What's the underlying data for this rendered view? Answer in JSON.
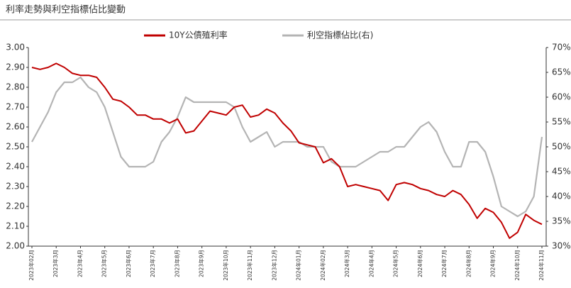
{
  "chart_data": {
    "type": "line",
    "title": "利率走勢與利空指標佔比變動",
    "categories": [
      "2023年02月",
      null,
      null,
      "2023年3月",
      null,
      null,
      "2023年4月",
      null,
      null,
      "2023年5月",
      null,
      null,
      "2023年6月",
      null,
      null,
      "2023年7月",
      null,
      null,
      "2023年8月",
      null,
      null,
      "2023年9月",
      null,
      null,
      "2023年10月",
      null,
      null,
      "2023年11月",
      null,
      null,
      "2023年12月",
      null,
      null,
      "2024年01月",
      null,
      null,
      "2024年02月",
      null,
      null,
      "2024年3月",
      null,
      null,
      "2024年4月",
      null,
      null,
      "2024年5月",
      null,
      null,
      "2024年6月",
      null,
      null,
      "2024年7月",
      null,
      null,
      "2024年8月",
      null,
      null,
      "2024年9月",
      null,
      null,
      "2024年10月",
      null,
      null,
      "2024年11月"
    ],
    "series": [
      {
        "name": "10Y公債殖利率",
        "color": "#c00000",
        "values": [
          2.9,
          2.89,
          2.9,
          2.92,
          2.9,
          2.87,
          2.86,
          2.86,
          2.85,
          2.8,
          2.74,
          2.73,
          2.7,
          2.66,
          2.66,
          2.64,
          2.64,
          2.62,
          2.64,
          2.57,
          2.58,
          2.63,
          2.68,
          2.67,
          2.66,
          2.7,
          2.71,
          2.65,
          2.66,
          2.69,
          2.67,
          2.62,
          2.58,
          2.52,
          2.51,
          2.5,
          2.42,
          2.44,
          2.4,
          2.3,
          2.31,
          2.3,
          2.29,
          2.28,
          2.23,
          2.31,
          2.32,
          2.31,
          2.29,
          2.28,
          2.26,
          2.25,
          2.28,
          2.26,
          2.21,
          2.14,
          2.19,
          2.17,
          2.12,
          2.04,
          2.07,
          2.16,
          2.13,
          2.11
        ]
      },
      {
        "name": "利空指標佔比(右)",
        "color": "#b4b4b4",
        "axis": "y2",
        "values": [
          51,
          54,
          57,
          61,
          63,
          63,
          64,
          62,
          61,
          58,
          53,
          48,
          46,
          46,
          46,
          47,
          51,
          53,
          56,
          60,
          59,
          59,
          59,
          59,
          59,
          58,
          54,
          51,
          52,
          53,
          50,
          51,
          51,
          51,
          50,
          50,
          50,
          47,
          46,
          46,
          46,
          47,
          48,
          49,
          49,
          50,
          50,
          52,
          54,
          55,
          53,
          49,
          46,
          46,
          51,
          51,
          49,
          44,
          38,
          37,
          36,
          37,
          40,
          52
        ]
      }
    ],
    "ylim": [
      2.0,
      3.0
    ],
    "yticks": [
      {
        "value": 2.0,
        "label": "2.00"
      },
      {
        "value": 2.1,
        "label": "2.10"
      },
      {
        "value": 2.2,
        "label": "2.20"
      },
      {
        "value": 2.3,
        "label": "2.30"
      },
      {
        "value": 2.4,
        "label": "2.40"
      },
      {
        "value": 2.5,
        "label": "2.50"
      },
      {
        "value": 2.6,
        "label": "2.60"
      },
      {
        "value": 2.7,
        "label": "2.70"
      },
      {
        "value": 2.8,
        "label": "2.80"
      },
      {
        "value": 2.9,
        "label": "2.90"
      },
      {
        "value": 3.0,
        "label": "3.00"
      }
    ],
    "y2lim": [
      30,
      70
    ],
    "y2ticks": [
      {
        "value": 30,
        "label": "30%"
      },
      {
        "value": 35,
        "label": "35%"
      },
      {
        "value": 40,
        "label": "40%"
      },
      {
        "value": 45,
        "label": "45%"
      },
      {
        "value": 50,
        "label": "50%"
      },
      {
        "value": 55,
        "label": "55%"
      },
      {
        "value": 60,
        "label": "60%"
      },
      {
        "value": 65,
        "label": "65%"
      },
      {
        "value": 70,
        "label": "70%"
      }
    ]
  }
}
